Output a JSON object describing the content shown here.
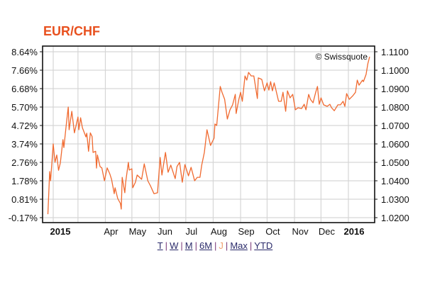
{
  "colors": {
    "title": "#e8501e",
    "line": "#f06a30",
    "grid": "#d6d6d6",
    "active_range": "#f0a070"
  },
  "chart_data": {
    "type": "line",
    "title": "EUR/CHF",
    "credit": "© Swissquote",
    "y_right": {
      "ticks": [
        "1.1100",
        "1.1000",
        "1.0900",
        "1.0800",
        "1.0700",
        "1.0600",
        "1.0500",
        "1.0400",
        "1.0300",
        "1.0200"
      ],
      "range": [
        1.02,
        1.11
      ]
    },
    "y_left": {
      "ticks": [
        "8.64%",
        "7.66%",
        "6.68%",
        "5.70%",
        "4.72%",
        "3.74%",
        "2.76%",
        "1.78%",
        "0.81%",
        "-0.17%"
      ]
    },
    "x_labels": [
      {
        "label": "2015",
        "date": "2015-01-01",
        "bold": true
      },
      {
        "label": "Apr",
        "date": "2015-04-01"
      },
      {
        "label": "May",
        "date": "2015-05-01"
      },
      {
        "label": "Jun",
        "date": "2015-06-01"
      },
      {
        "label": "Jul",
        "date": "2015-07-01"
      },
      {
        "label": "Aug",
        "date": "2015-08-01"
      },
      {
        "label": "Sep",
        "date": "2015-09-01"
      },
      {
        "label": "Oct",
        "date": "2015-10-01"
      },
      {
        "label": "Nov",
        "date": "2015-11-01"
      },
      {
        "label": "Dec",
        "date": "2015-12-01"
      },
      {
        "label": "2016",
        "date": "2016-01-01",
        "bold": true
      }
    ],
    "grid": true,
    "series": [
      {
        "x": [
          "2015-01-26",
          "2015-01-28",
          "2015-01-29",
          "2015-02-01",
          "2015-02-03",
          "2015-02-05",
          "2015-02-07",
          "2015-02-09",
          "2015-02-12",
          "2015-02-13",
          "2015-02-16",
          "2015-02-18",
          "2015-02-19",
          "2015-02-22",
          "2015-02-25",
          "2015-03-01",
          "2015-03-02",
          "2015-03-04",
          "2015-03-06",
          "2015-03-10",
          "2015-03-11",
          "2015-03-13",
          "2015-03-15",
          "2015-03-17",
          "2015-03-18",
          "2015-03-21",
          "2015-03-22",
          "2015-03-23",
          "2015-03-26",
          "2015-03-28",
          "2015-03-31",
          "2015-04-03",
          "2015-04-06",
          "2015-04-08",
          "2015-04-11",
          "2015-04-12",
          "2015-04-15",
          "2015-04-18",
          "2015-04-19",
          "2015-04-20",
          "2015-04-23",
          "2015-04-24",
          "2015-04-27",
          "2015-04-28",
          "2015-05-01",
          "2015-05-02",
          "2015-05-05",
          "2015-05-07",
          "2015-05-12",
          "2015-05-15",
          "2015-05-19",
          "2015-05-22",
          "2015-05-26",
          "2015-05-30",
          "2015-06-02",
          "2015-06-04",
          "2015-06-08",
          "2015-06-11",
          "2015-06-14",
          "2015-06-19",
          "2015-06-21",
          "2015-06-24",
          "2015-06-27",
          "2015-06-30",
          "2015-07-04",
          "2015-07-07",
          "2015-07-11",
          "2015-07-14",
          "2015-07-17",
          "2015-07-19",
          "2015-07-22",
          "2015-07-25",
          "2015-07-29",
          "2015-08-02",
          "2015-08-03",
          "2015-08-05",
          "2015-08-09",
          "2015-08-11",
          "2015-08-14",
          "2015-08-17",
          "2015-08-20",
          "2015-08-23",
          "2015-08-26",
          "2015-08-27",
          "2015-08-30",
          "2015-09-01",
          "2015-09-03",
          "2015-09-06",
          "2015-09-08",
          "2015-09-10",
          "2015-09-13",
          "2015-09-16",
          "2015-09-18",
          "2015-09-20",
          "2015-09-21",
          "2015-09-25",
          "2015-09-28",
          "2015-10-01",
          "2015-10-03",
          "2015-10-05",
          "2015-10-07",
          "2015-10-09",
          "2015-10-11",
          "2015-10-14",
          "2015-10-17",
          "2015-10-19",
          "2015-10-22",
          "2015-10-24",
          "2015-10-27",
          "2015-10-30",
          "2015-11-02",
          "2015-11-05",
          "2015-11-09",
          "2015-11-12",
          "2015-11-14",
          "2015-11-17",
          "2015-11-19",
          "2015-11-22",
          "2015-11-25",
          "2015-11-27",
          "2015-11-29",
          "2015-12-01",
          "2015-12-04",
          "2015-12-08",
          "2015-12-11",
          "2015-12-13",
          "2015-12-16",
          "2015-12-20",
          "2015-12-23",
          "2015-12-26",
          "2015-12-28",
          "2015-12-30",
          "2016-01-02",
          "2016-01-06",
          "2016-01-09",
          "2016-01-11",
          "2016-01-13",
          "2016-01-17",
          "2016-01-18",
          "2016-01-21",
          "2016-01-23",
          "2016-01-25"
        ],
        "y": [
          1.0219,
          1.045,
          1.04,
          1.06,
          1.05,
          1.054,
          1.0457,
          1.0496,
          1.0623,
          1.058,
          1.0715,
          1.08,
          1.0677,
          1.0777,
          1.066,
          1.0746,
          1.0677,
          1.0742,
          1.0688,
          1.0638,
          1.0658,
          1.056,
          1.066,
          1.064,
          1.0554,
          1.056,
          1.0469,
          1.054,
          1.0477,
          1.047,
          1.04,
          1.047,
          1.0438,
          1.0408,
          1.033,
          1.0362,
          1.0304,
          1.0277,
          1.0246,
          1.0419,
          1.0335,
          1.0392,
          1.05,
          1.0458,
          1.0465,
          1.0362,
          1.0392,
          1.0431,
          1.0408,
          1.0492,
          1.04,
          1.0373,
          1.033,
          1.0335,
          1.0527,
          1.0431,
          1.0554,
          1.0446,
          1.0485,
          1.0412,
          1.0477,
          1.05,
          1.0392,
          1.0488,
          1.0427,
          1.0473,
          1.04,
          1.0419,
          1.0419,
          1.0485,
          1.0554,
          1.0677,
          1.0592,
          1.0631,
          1.0708,
          1.07,
          1.0912,
          1.088,
          1.0842,
          1.0735,
          1.0785,
          1.0812,
          1.0869,
          1.0765,
          1.0842,
          1.088,
          1.0831,
          1.0969,
          1.0946,
          1.0988,
          1.0969,
          1.0969,
          1.0908,
          1.0846,
          1.0958,
          1.095,
          1.0888,
          1.0931,
          1.0892,
          1.0938,
          1.0888,
          1.0931,
          1.0892,
          1.0831,
          1.0831,
          1.088,
          1.0777,
          1.0888,
          1.085,
          1.0869,
          1.0785,
          1.0796,
          1.0792,
          1.0815,
          1.0785,
          1.0869,
          1.0842,
          1.0823,
          1.088,
          1.0912,
          1.0815,
          1.085,
          1.0812,
          1.0804,
          1.0815,
          1.0796,
          1.078,
          1.0812,
          1.0812,
          1.0831,
          1.0804,
          1.0873,
          1.0842,
          1.0861,
          1.088,
          1.0946,
          1.0919,
          1.0946,
          1.0938,
          1.0977,
          1.1035,
          1.1073
        ]
      }
    ]
  },
  "range_links": [
    {
      "label": "T",
      "active": false
    },
    {
      "label": "W",
      "active": false
    },
    {
      "label": "M",
      "active": false
    },
    {
      "label": "6M",
      "active": false
    },
    {
      "label": "J",
      "active": true
    },
    {
      "label": "Max",
      "active": false
    },
    {
      "label": "YTD",
      "active": false
    }
  ]
}
